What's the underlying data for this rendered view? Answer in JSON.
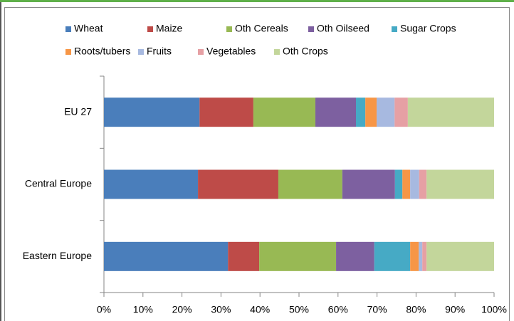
{
  "chart_data": {
    "type": "stacked_barh",
    "categories": [
      "EU 27",
      "Central Europe",
      "Eastern Europe"
    ],
    "series": [
      {
        "name": "Wheat",
        "color": "#4a7ebb",
        "values": [
          24.5,
          24.1,
          31.8
        ]
      },
      {
        "name": "Maize",
        "color": "#be4b48",
        "values": [
          13.8,
          20.6,
          8.0
        ]
      },
      {
        "name": "Oth Cereals",
        "color": "#98b954",
        "values": [
          15.9,
          16.4,
          19.7
        ]
      },
      {
        "name": "Oth Oilseed",
        "color": "#7d60a0",
        "values": [
          10.4,
          13.5,
          9.8
        ]
      },
      {
        "name": "Sugar Crops",
        "color": "#46aac5",
        "values": [
          2.4,
          1.9,
          9.2
        ]
      },
      {
        "name": "Roots/tubers",
        "color": "#f79646",
        "values": [
          2.9,
          2.0,
          2.2
        ]
      },
      {
        "name": "Fruits",
        "color": "#a7b9e0",
        "values": [
          4.6,
          2.3,
          0.9
        ]
      },
      {
        "name": "Vegetables",
        "color": "#e6a0a4",
        "values": [
          3.4,
          1.9,
          1.1
        ]
      },
      {
        "name": "Oth Crops",
        "color": "#c3d69b",
        "values": [
          22.1,
          17.3,
          17.3
        ]
      }
    ],
    "xlim": [
      0,
      100
    ],
    "xticks": [
      {
        "value": 0,
        "label": "0%"
      },
      {
        "value": 10,
        "label": "10%"
      },
      {
        "value": 20,
        "label": "20%"
      },
      {
        "value": 30,
        "label": "30%"
      },
      {
        "value": 40,
        "label": "40%"
      },
      {
        "value": 50,
        "label": "50%"
      },
      {
        "value": 60,
        "label": "60%"
      },
      {
        "value": 70,
        "label": "70%"
      },
      {
        "value": 80,
        "label": "80%"
      },
      {
        "value": 90,
        "label": "90%"
      },
      {
        "value": 100,
        "label": "100%"
      }
    ],
    "legend": "top"
  }
}
